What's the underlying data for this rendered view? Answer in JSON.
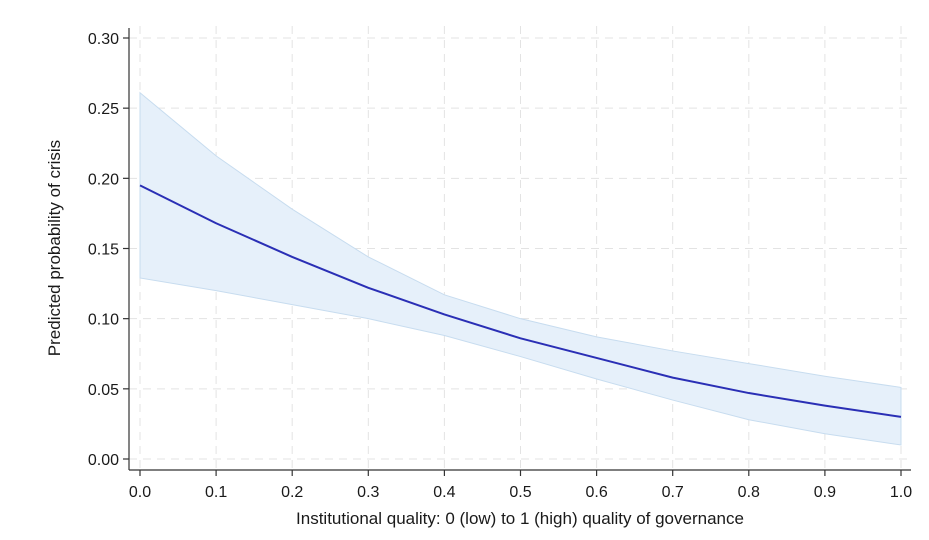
{
  "chart_data": {
    "type": "line",
    "xlabel": "Institutional quality: 0 (low) to 1 (high) quality of governance",
    "ylabel": "Predicted probability of crisis",
    "xlim": [
      0,
      1
    ],
    "ylim": [
      0,
      0.3
    ],
    "x_ticks": [
      "0.0",
      "0.1",
      "0.2",
      "0.3",
      "0.4",
      "0.5",
      "0.6",
      "0.7",
      "0.8",
      "0.9",
      "1.0"
    ],
    "y_ticks": [
      "0.00",
      "0.05",
      "0.10",
      "0.15",
      "0.20",
      "0.25",
      "0.30"
    ],
    "grid": true,
    "x": [
      0.0,
      0.1,
      0.2,
      0.3,
      0.4,
      0.5,
      0.6,
      0.7,
      0.8,
      0.9,
      1.0
    ],
    "series": [
      {
        "values": [
          0.195,
          0.168,
          0.144,
          0.122,
          0.103,
          0.086,
          0.072,
          0.058,
          0.047,
          0.038,
          0.03
        ],
        "lower": [
          0.129,
          0.12,
          0.11,
          0.1,
          0.088,
          0.073,
          0.057,
          0.042,
          0.028,
          0.018,
          0.01
        ],
        "upper": [
          0.261,
          0.216,
          0.178,
          0.144,
          0.117,
          0.1,
          0.087,
          0.077,
          0.068,
          0.059,
          0.051
        ]
      }
    ],
    "colors": {
      "line": "#2a2fb5",
      "band": "#e6f0fa",
      "band_edge": "#c7dcef"
    }
  }
}
